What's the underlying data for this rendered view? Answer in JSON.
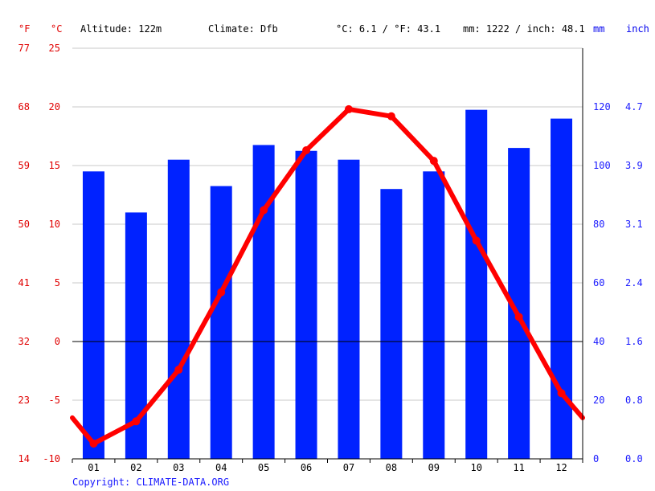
{
  "header": {
    "altitude": "Altitude: 122m",
    "climate": "Climate: Dfb",
    "temp_avg": "°C: 6.1 / °F: 43.1",
    "precip_total": "mm: 1222 / inch: 48.1"
  },
  "units": {
    "f": "°F",
    "c": "°C",
    "mm": "mm",
    "inch": "inch"
  },
  "copyright": "Copyright: CLIMATE-DATA.ORG",
  "colors": {
    "temperature": "#ff0000",
    "precipitation": "#0022ff",
    "temp_axis": "#e00000",
    "precip_axis": "#1a1aff"
  },
  "chart_data": {
    "type": "bar",
    "categories": [
      "01",
      "02",
      "03",
      "04",
      "05",
      "06",
      "07",
      "08",
      "09",
      "10",
      "11",
      "12"
    ],
    "series": [
      {
        "type": "bar",
        "axis": "right",
        "values": [
          98,
          84,
          102,
          93,
          107,
          105,
          102,
          92,
          98,
          119,
          106,
          116
        ]
      },
      {
        "type": "line",
        "axis": "left",
        "values": [
          -8.7,
          -6.8,
          -2.4,
          4.2,
          11.2,
          16.3,
          19.8,
          19.2,
          15.4,
          8.6,
          2.1,
          -4.4
        ]
      }
    ],
    "line_end_values": [
      -6.5,
      -6.5
    ],
    "left_axis_c": {
      "ticks": [
        25,
        20,
        15,
        10,
        5,
        0,
        -5,
        -10
      ],
      "range": [
        -10,
        25
      ]
    },
    "left_axis_f": {
      "ticks": [
        "77",
        "68",
        "59",
        "50",
        "41",
        "32",
        "23",
        "14"
      ]
    },
    "right_axis_mm": {
      "ticks": [
        "120",
        "100",
        "80",
        "60",
        "40",
        "20",
        "0"
      ],
      "range": [
        0,
        140
      ]
    },
    "right_axis_inch": {
      "ticks": [
        "4.7",
        "3.9",
        "3.1",
        "2.4",
        "1.6",
        "0.8",
        "0.0"
      ]
    },
    "grid": true
  }
}
